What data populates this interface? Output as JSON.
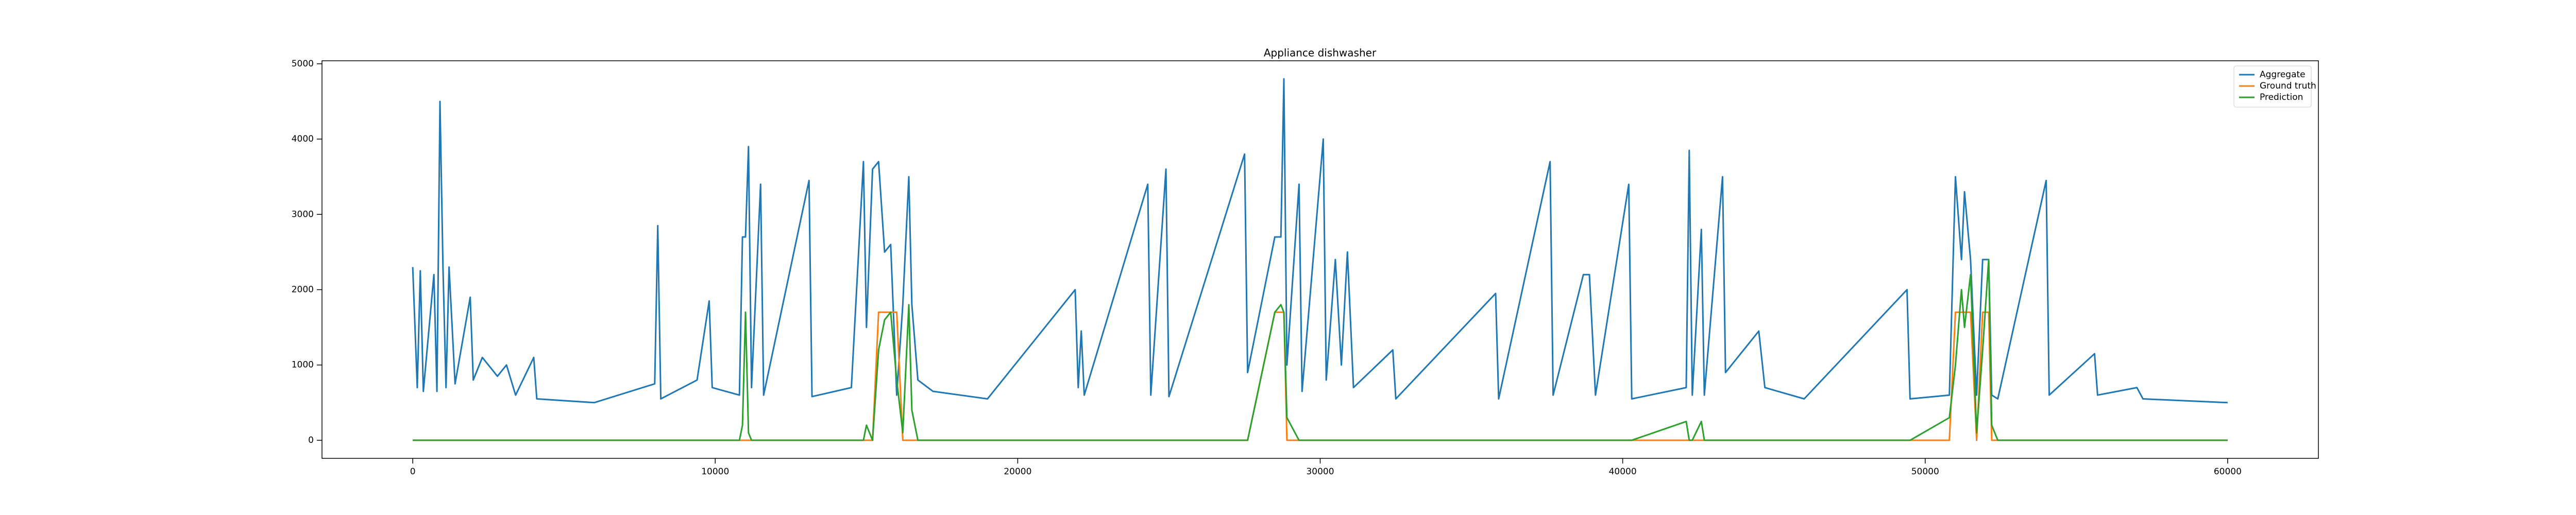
{
  "chart_data": {
    "type": "line",
    "title": "Appliance dishwasher",
    "x": [
      0,
      150,
      250,
      350,
      700,
      800,
      900,
      1000,
      1100,
      1200,
      1400,
      1900,
      2000,
      2300,
      2800,
      3100,
      3400,
      4000,
      4100,
      6000,
      8000,
      8100,
      8200,
      9400,
      9800,
      9900,
      10800,
      10900,
      11000,
      11100,
      11200,
      11500,
      11600,
      13100,
      13200,
      14500,
      14900,
      15000,
      15200,
      15400,
      15600,
      15800,
      16000,
      16200,
      16400,
      16500,
      16700,
      17200,
      19000,
      21900,
      22000,
      22100,
      22200,
      24300,
      24400,
      24900,
      25000,
      27500,
      27600,
      28500,
      28700,
      28800,
      28900,
      29300,
      29400,
      30100,
      30200,
      30500,
      30700,
      30900,
      31100,
      32400,
      32500,
      35800,
      35900,
      37600,
      37700,
      38700,
      38900,
      39100,
      40200,
      40300,
      42100,
      42200,
      42300,
      42600,
      42700,
      43300,
      43400,
      44500,
      44700,
      46000,
      49400,
      49500,
      50800,
      51000,
      51200,
      51300,
      51500,
      51700,
      51900,
      52100,
      52200,
      52400,
      54000,
      54100,
      55600,
      55700,
      57000,
      57200,
      60000
    ],
    "series": [
      {
        "name": "Aggregate",
        "color": "#1f77b4",
        "values": [
          2300,
          700,
          2250,
          650,
          2200,
          650,
          4500,
          2300,
          700,
          2300,
          750,
          1900,
          800,
          1100,
          850,
          1000,
          600,
          1100,
          550,
          500,
          750,
          2850,
          550,
          800,
          1850,
          700,
          600,
          2700,
          2700,
          3900,
          700,
          3400,
          600,
          3450,
          580,
          700,
          3700,
          1500,
          3600,
          3700,
          2500,
          2600,
          600,
          1800,
          3500,
          1800,
          800,
          650,
          550,
          2000,
          700,
          1450,
          600,
          3400,
          600,
          3600,
          580,
          3800,
          900,
          2700,
          2700,
          4800,
          1000,
          3400,
          650,
          4000,
          800,
          2400,
          1000,
          2500,
          700,
          1200,
          550,
          1950,
          550,
          3700,
          600,
          2200,
          2200,
          600,
          3400,
          550,
          700,
          3850,
          600,
          2800,
          600,
          3500,
          900,
          1450,
          700,
          550,
          2000,
          550,
          600,
          3500,
          2400,
          3300,
          2400,
          600,
          2400,
          2400,
          600,
          550,
          3450,
          600,
          1150,
          600,
          700,
          550,
          500
        ]
      },
      {
        "name": "Ground truth",
        "color": "#ff7f0e",
        "values": [
          0,
          0,
          0,
          0,
          0,
          0,
          0,
          0,
          0,
          0,
          0,
          0,
          0,
          0,
          0,
          0,
          0,
          0,
          0,
          0,
          0,
          0,
          0,
          0,
          0,
          0,
          0,
          0,
          0,
          0,
          0,
          0,
          0,
          0,
          0,
          0,
          0,
          0,
          0,
          1700,
          1700,
          1700,
          1700,
          0,
          0,
          0,
          0,
          0,
          0,
          0,
          0,
          0,
          0,
          0,
          0,
          0,
          0,
          0,
          0,
          1700,
          1700,
          1700,
          0,
          0,
          0,
          0,
          0,
          0,
          0,
          0,
          0,
          0,
          0,
          0,
          0,
          0,
          0,
          0,
          0,
          0,
          0,
          0,
          0,
          0,
          0,
          0,
          0,
          0,
          0,
          0,
          0,
          0,
          0,
          0,
          0,
          1700,
          1700,
          1700,
          1700,
          0,
          1700,
          1700,
          0,
          0,
          0,
          0,
          0,
          0,
          0,
          0,
          0
        ]
      },
      {
        "name": "Prediction",
        "color": "#2ca02c",
        "values": [
          0,
          0,
          0,
          0,
          0,
          0,
          0,
          0,
          0,
          0,
          0,
          0,
          0,
          0,
          0,
          0,
          0,
          0,
          0,
          0,
          0,
          0,
          0,
          0,
          0,
          0,
          0,
          200,
          1700,
          100,
          0,
          0,
          0,
          0,
          0,
          0,
          0,
          200,
          0,
          1200,
          1600,
          1700,
          800,
          100,
          1800,
          400,
          0,
          0,
          0,
          0,
          0,
          0,
          0,
          0,
          0,
          0,
          0,
          0,
          0,
          1700,
          1800,
          1700,
          300,
          0,
          0,
          0,
          0,
          0,
          0,
          0,
          0,
          0,
          0,
          0,
          0,
          0,
          0,
          0,
          0,
          0,
          0,
          0,
          250,
          0,
          0,
          250,
          0,
          0,
          0,
          0,
          0,
          0,
          0,
          0,
          300,
          1000,
          2000,
          1500,
          2200,
          100,
          1200,
          2400,
          200,
          0,
          0,
          0,
          0,
          0,
          0,
          0,
          0
        ]
      }
    ],
    "xlim": [
      -3000,
      63000
    ],
    "ylim": [
      -240,
      5040
    ],
    "xticks": [
      0,
      10000,
      20000,
      30000,
      40000,
      50000,
      60000
    ],
    "yticks": [
      0,
      1000,
      2000,
      3000,
      4000,
      5000
    ],
    "legend": "upper right"
  }
}
